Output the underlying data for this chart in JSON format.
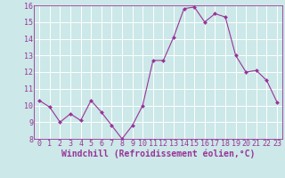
{
  "x": [
    0,
    1,
    2,
    3,
    4,
    5,
    6,
    7,
    8,
    9,
    10,
    11,
    12,
    13,
    14,
    15,
    16,
    17,
    18,
    19,
    20,
    21,
    22,
    23
  ],
  "y": [
    10.3,
    9.9,
    9.0,
    9.5,
    9.1,
    10.3,
    9.6,
    8.8,
    8.0,
    8.8,
    10.0,
    12.7,
    12.7,
    14.1,
    15.8,
    15.9,
    15.0,
    15.5,
    15.3,
    13.0,
    12.0,
    12.1,
    11.5,
    10.2
  ],
  "xlabel": "Windchill (Refroidissement éolien,°C)",
  "ylim": [
    8,
    16
  ],
  "xlim_min": -0.5,
  "xlim_max": 23.5,
  "yticks": [
    8,
    9,
    10,
    11,
    12,
    13,
    14,
    15,
    16
  ],
  "xticks": [
    0,
    1,
    2,
    3,
    4,
    5,
    6,
    7,
    8,
    9,
    10,
    11,
    12,
    13,
    14,
    15,
    16,
    17,
    18,
    19,
    20,
    21,
    22,
    23
  ],
  "line_color": "#993399",
  "marker_color": "#993399",
  "bg_color": "#cce8e8",
  "grid_color": "#ffffff",
  "xlabel_fontsize": 7,
  "tick_fontsize": 6
}
